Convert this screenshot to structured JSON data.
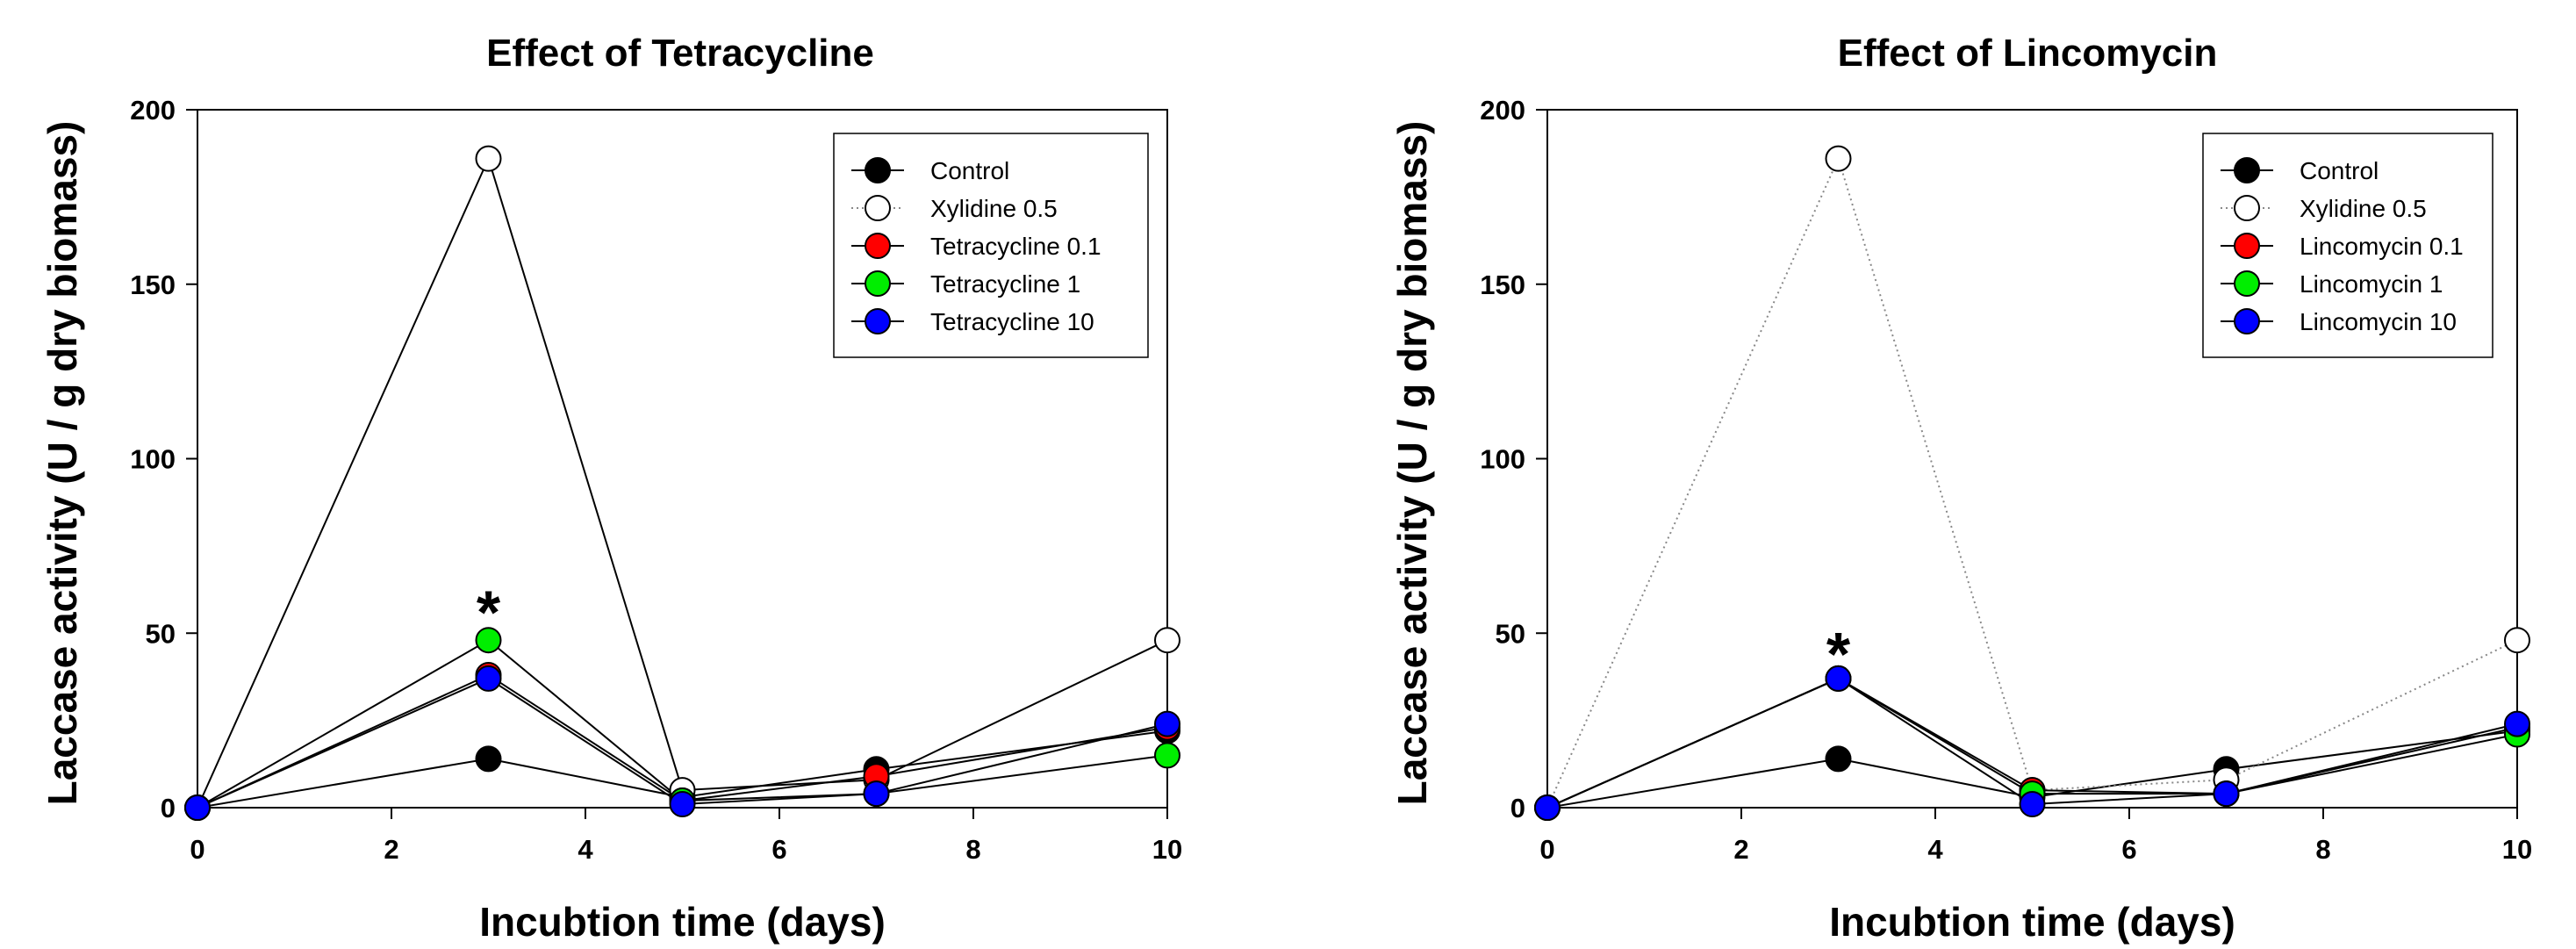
{
  "chart_data": [
    {
      "type": "line",
      "title": "Effect of Tetracycline",
      "xlabel": "Incubtion time (days)",
      "ylabel": "Laccase activity (U / g dry biomass)",
      "xlim": [
        0,
        10
      ],
      "ylim": [
        0,
        200
      ],
      "xticks": [
        "0",
        "2",
        "4",
        "6",
        "8",
        "10"
      ],
      "yticks": [
        "0",
        "50",
        "100",
        "150",
        "200"
      ],
      "grid": false,
      "legend_position": "top-right",
      "x": [
        0,
        3,
        5,
        7,
        10
      ],
      "annotation": {
        "text": "*",
        "x": 3,
        "y": 60
      },
      "series": [
        {
          "name": "Control",
          "color": "#000000",
          "marker": "filled-circle",
          "line": "solid",
          "values": [
            0,
            14,
            3,
            11,
            22
          ]
        },
        {
          "name": "Xylidine 0.5",
          "color": "#000000",
          "marker": "open-circle",
          "line": "solid",
          "legend_line": "dotted",
          "values": [
            0,
            186,
            5,
            8,
            48
          ]
        },
        {
          "name": "Tetracycline 0.1",
          "color": "#ff0000",
          "marker": "filled-circle",
          "line": "solid",
          "values": [
            0,
            38,
            2,
            9,
            23
          ]
        },
        {
          "name": "Tetracycline  1",
          "color": "#00ee00",
          "marker": "filled-circle",
          "line": "solid",
          "values": [
            0,
            48,
            2,
            4,
            15
          ]
        },
        {
          "name": "Tetracycline  10",
          "color": "#0000ff",
          "marker": "filled-circle",
          "line": "solid",
          "values": [
            0,
            37,
            1,
            4,
            24
          ]
        }
      ]
    },
    {
      "type": "line",
      "title": "Effect of Lincomycin",
      "xlabel": "Incubtion time (days)",
      "ylabel": "Laccase activity (U / g dry biomass)",
      "xlim": [
        0,
        10
      ],
      "ylim": [
        0,
        200
      ],
      "xticks": [
        "0",
        "2",
        "4",
        "6",
        "8",
        "10"
      ],
      "yticks": [
        "0",
        "50",
        "100",
        "150",
        "200"
      ],
      "grid": false,
      "legend_position": "top-right",
      "x": [
        0,
        3,
        5,
        7,
        10
      ],
      "annotation": {
        "text": "*",
        "x": 3,
        "y": 48
      },
      "series": [
        {
          "name": "Control",
          "color": "#000000",
          "marker": "filled-circle",
          "line": "solid",
          "values": [
            0,
            14,
            3,
            11,
            22
          ]
        },
        {
          "name": "Xylidine 0.5",
          "color": "#000000",
          "marker": "open-circle",
          "line": "dotted",
          "values": [
            0,
            186,
            5,
            8,
            48
          ]
        },
        {
          "name": "Lincomycin 0.1",
          "color": "#ff0000",
          "marker": "filled-circle",
          "line": "solid",
          "values": [
            0,
            37,
            5,
            4,
            23
          ]
        },
        {
          "name": "Lincomycin 1",
          "color": "#00ee00",
          "marker": "filled-circle",
          "line": "solid",
          "values": [
            0,
            37,
            4,
            4,
            21
          ]
        },
        {
          "name": "Lincomycin 10",
          "color": "#0000ff",
          "marker": "filled-circle",
          "line": "solid",
          "values": [
            0,
            37,
            1,
            4,
            24
          ]
        }
      ]
    }
  ]
}
